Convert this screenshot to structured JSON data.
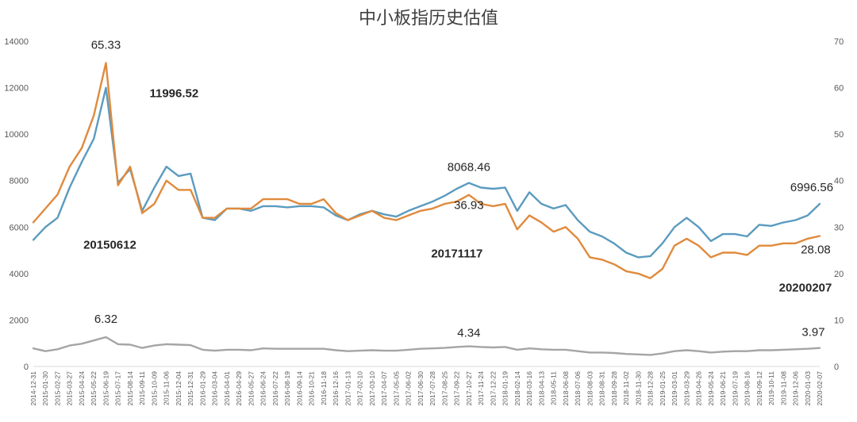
{
  "chart_data": {
    "type": "line",
    "title": "中小板指历史估值",
    "y_left": {
      "min": 0,
      "max": 14000,
      "ticks": [
        "0",
        "2000",
        "4000",
        "6000",
        "8000",
        "10000",
        "12000",
        "14000"
      ]
    },
    "y_right": {
      "min": 0,
      "max": 70,
      "ticks": [
        "0",
        "10",
        "20",
        "30",
        "40",
        "50",
        "60",
        "70"
      ]
    },
    "x_labels": [
      "2014-12-31",
      "2015-01-30",
      "2015-02-27",
      "2015-03-27",
      "2015-04-24",
      "2015-05-22",
      "2015-06-19",
      "2015-07-17",
      "2015-08-14",
      "2015-09-11",
      "2015-10-09",
      "2015-11-06",
      "2015-12-04",
      "2015-12-31",
      "2016-01-29",
      "2016-03-04",
      "2016-04-01",
      "2016-04-29",
      "2016-05-27",
      "2016-06-24",
      "2016-07-22",
      "2016-08-19",
      "2016-09-14",
      "2016-10-21",
      "2016-11-18",
      "2016-12-16",
      "2017-01-13",
      "2017-02-10",
      "2017-03-10",
      "2017-04-07",
      "2017-05-05",
      "2017-06-02",
      "2017-06-30",
      "2017-07-28",
      "2017-08-25",
      "2017-09-22",
      "2017-10-27",
      "2017-11-24",
      "2017-12-22",
      "2018-01-19",
      "2018-02-14",
      "2018-03-16",
      "2018-04-13",
      "2018-05-11",
      "2018-06-08",
      "2018-07-06",
      "2018-08-03",
      "2018-08-31",
      "2018-09-28",
      "2018-11-02",
      "2018-11-30",
      "2018-12-28",
      "2019-01-25",
      "2019-03-01",
      "2019-03-29",
      "2019-04-26",
      "2019-05-24",
      "2019-06-21",
      "2019-07-19",
      "2019-08-16",
      "2019-09-12",
      "2019-10-11",
      "2019-11-08",
      "2019-12-06",
      "2020-01-03",
      "2020-02-07"
    ],
    "grid": false,
    "series": [
      {
        "axis": "left",
        "color": "#5B9BBF",
        "values": [
          5450,
          6000,
          6400,
          7700,
          8800,
          9800,
          11996.52,
          7900,
          8500,
          6700,
          7700,
          8600,
          8200,
          8300,
          6400,
          6300,
          6800,
          6800,
          6700,
          6900,
          6900,
          6850,
          6900,
          6900,
          6850,
          6500,
          6300,
          6550,
          6700,
          6550,
          6450,
          6700,
          6900,
          7100,
          7350,
          7650,
          7900,
          7700,
          7650,
          7700,
          6700,
          7500,
          7000,
          6800,
          6950,
          6300,
          5800,
          5600,
          5300,
          4900,
          4700,
          4750,
          5300,
          6000,
          6400,
          6000,
          5400,
          5700,
          5700,
          5600,
          6100,
          6050,
          6200,
          6300,
          6500,
          7000
        ]
      },
      {
        "axis": "right",
        "color": "#E08A3C",
        "values": [
          31,
          34,
          37,
          43,
          47,
          54,
          65.33,
          39,
          43,
          33,
          35,
          40,
          38,
          38,
          32,
          32,
          34,
          34,
          34,
          36,
          36,
          36,
          35,
          35,
          36,
          33,
          31.5,
          32.5,
          33.5,
          32,
          31.5,
          32.5,
          33.5,
          34,
          35,
          35.5,
          36.93,
          35,
          34.5,
          35,
          29.5,
          32.5,
          31,
          29,
          30,
          27.5,
          23.5,
          23,
          22,
          20.5,
          20,
          19,
          21,
          26,
          27.5,
          26,
          23.5,
          24.5,
          24.5,
          24,
          26,
          26,
          26.5,
          26.5,
          27.5,
          28.08
        ]
      },
      {
        "axis": "right",
        "color": "#A5A5A5",
        "values": [
          3.9,
          3.3,
          3.7,
          4.5,
          4.9,
          5.6,
          6.32,
          4.8,
          4.7,
          4.0,
          4.5,
          4.8,
          4.7,
          4.6,
          3.6,
          3.4,
          3.6,
          3.6,
          3.5,
          3.9,
          3.8,
          3.8,
          3.8,
          3.8,
          3.8,
          3.5,
          3.3,
          3.4,
          3.5,
          3.4,
          3.4,
          3.6,
          3.8,
          3.9,
          4.0,
          4.2,
          4.34,
          4.2,
          4.1,
          4.2,
          3.6,
          3.9,
          3.7,
          3.6,
          3.6,
          3.3,
          3.0,
          3.0,
          2.9,
          2.7,
          2.6,
          2.5,
          2.8,
          3.3,
          3.5,
          3.3,
          3.0,
          3.2,
          3.3,
          3.3,
          3.5,
          3.5,
          3.6,
          3.7,
          3.8,
          3.97
        ]
      }
    ],
    "annotations": [
      {
        "text": "65.33",
        "series": 1,
        "index": 6,
        "dy": -18,
        "anchor": "middle",
        "bold": false
      },
      {
        "text": "11996.52",
        "series": 0,
        "index": 6,
        "dx": 55,
        "dy": 12,
        "anchor": "start",
        "bold": true
      },
      {
        "text": "20150612",
        "series": 0,
        "index": 6,
        "dx": 5,
        "dy": 203,
        "anchor": "middle",
        "bold": true
      },
      {
        "text": "6.32",
        "series": 2,
        "index": 6,
        "dy": -18,
        "anchor": "middle",
        "bold": false
      },
      {
        "text": "8068.46",
        "series": 0,
        "index": 36,
        "dy": -15,
        "anchor": "middle",
        "bold": false
      },
      {
        "text": "36.93",
        "series": 1,
        "index": 36,
        "dy": 18,
        "anchor": "middle",
        "bold": false
      },
      {
        "text": "20171117",
        "series": 0,
        "index": 36,
        "dx": -15,
        "dy": 94,
        "anchor": "middle",
        "bold": true
      },
      {
        "text": "4.34",
        "series": 2,
        "index": 36,
        "dy": -12,
        "anchor": "middle",
        "bold": false
      },
      {
        "text": "6996.56",
        "series": 0,
        "index": 65,
        "dx": -10,
        "dy": -16,
        "anchor": "middle",
        "bold": false
      },
      {
        "text": "28.08",
        "series": 1,
        "index": 65,
        "dx": -5,
        "dy": 22,
        "anchor": "middle",
        "bold": false
      },
      {
        "text": "20200207",
        "series": 1,
        "index": 65,
        "dx": -18,
        "dy": 70,
        "anchor": "middle",
        "bold": true
      },
      {
        "text": "3.97",
        "series": 2,
        "index": 65,
        "dx": -8,
        "dy": -15,
        "anchor": "middle",
        "bold": false
      }
    ]
  }
}
